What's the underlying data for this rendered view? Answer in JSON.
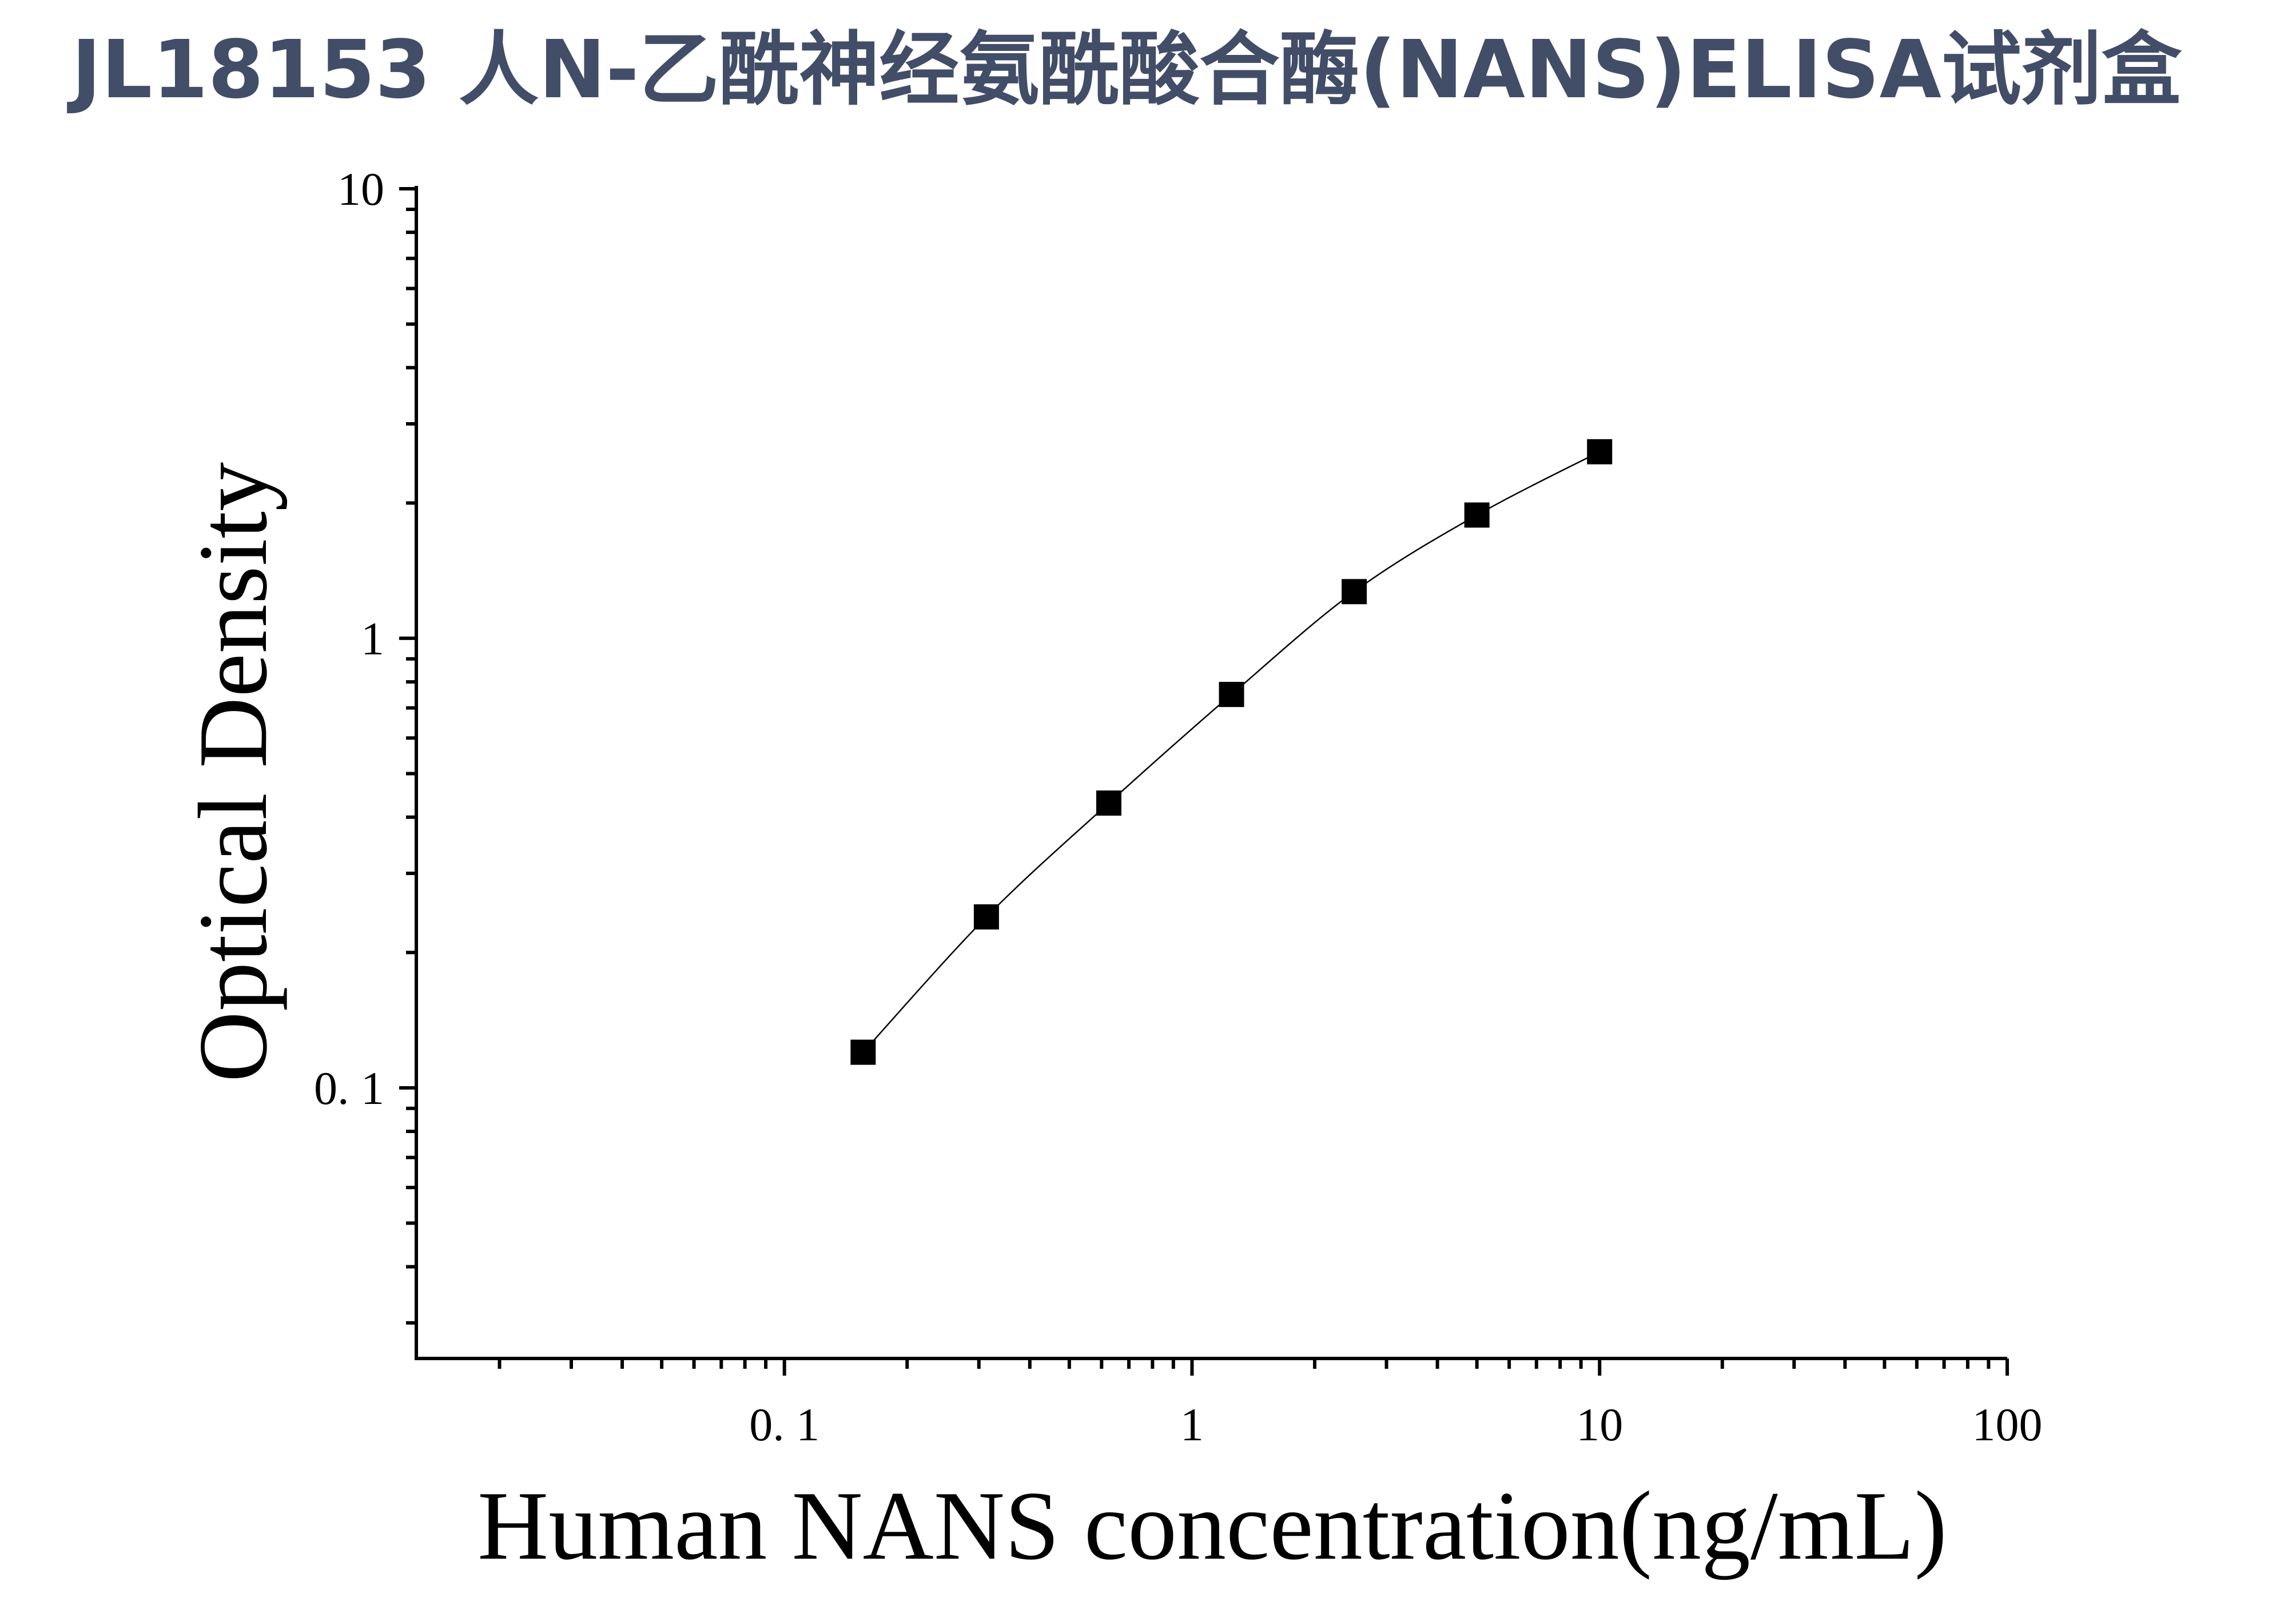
{
  "chart_data": {
    "type": "scatter",
    "title": "JL18153 人N-乙酰神经氨酰酸合酶(NANS)ELISA试剂盒",
    "xlabel": "Human NANS concentration(ng/mL)",
    "ylabel": "Optical Density",
    "x_scale": "log",
    "y_scale": "log",
    "xlim": [
      0.0125,
      100
    ],
    "ylim": [
      0.025,
      10
    ],
    "x_ticks": [
      {
        "value": 0.1,
        "label": "0. 1"
      },
      {
        "value": 1,
        "label": "1"
      },
      {
        "value": 10,
        "label": "10"
      },
      {
        "value": 100,
        "label": "100"
      }
    ],
    "y_ticks": [
      {
        "value": 0.1,
        "label": "0. 1"
      },
      {
        "value": 1,
        "label": "1"
      },
      {
        "value": 10,
        "label": "10"
      }
    ],
    "grid": false,
    "series": [
      {
        "marker": "square",
        "color": "#000000",
        "x": [
          0.156,
          0.313,
          0.625,
          1.25,
          2.5,
          5,
          10
        ],
        "y": [
          0.12,
          0.24,
          0.43,
          0.75,
          1.27,
          1.88,
          2.6
        ]
      }
    ],
    "fit_line": true
  }
}
